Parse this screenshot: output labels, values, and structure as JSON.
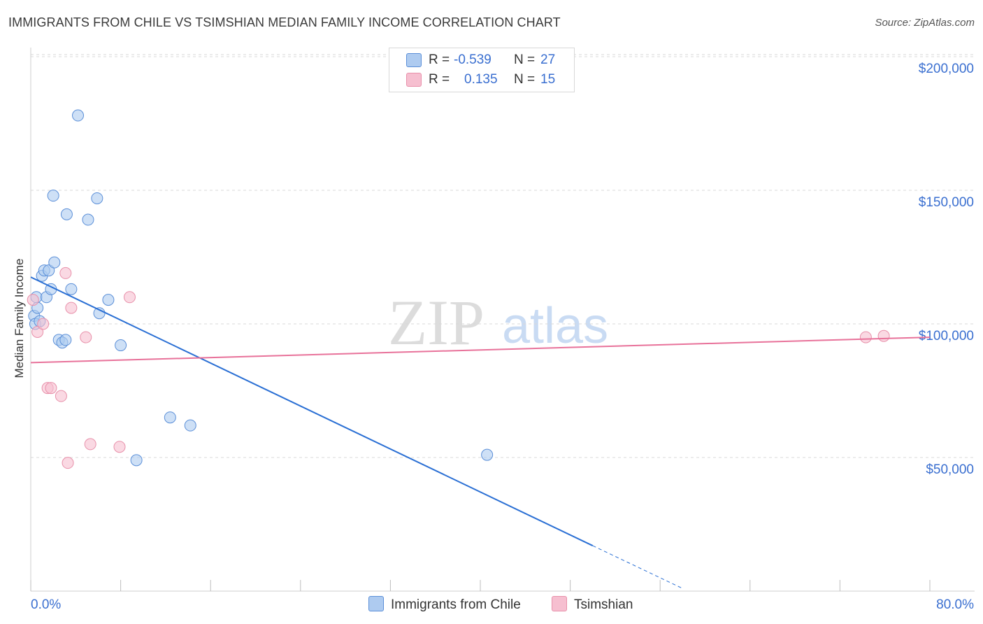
{
  "header": {
    "title": "IMMIGRANTS FROM CHILE VS TSIMSHIAN MEDIAN FAMILY INCOME CORRELATION CHART",
    "source": "Source: ZipAtlas.com"
  },
  "legend": {
    "r_label": "R =",
    "n_label": "N =",
    "rows": [
      {
        "r": "-0.539",
        "n": "27",
        "color": "#aecbf0"
      },
      {
        "r": "0.135",
        "n": "15",
        "color": "#f6bfd0"
      }
    ]
  },
  "watermark": {
    "zip": "ZIP",
    "atlas": "atlas"
  },
  "colors": {
    "blue_fill": "#aecbf0",
    "blue_stroke": "#5b8fd8",
    "blue_line": "#2a6fd4",
    "pink_fill": "#f6bfd0",
    "pink_stroke": "#e890aa",
    "pink_line": "#e8729a",
    "grid": "#d9d9d9",
    "axis_label": "#3a6fd0"
  },
  "chart_data": {
    "type": "scatter",
    "title": "IMMIGRANTS FROM CHILE VS TSIMSHIAN MEDIAN FAMILY INCOME CORRELATION CHART",
    "xlabel": "",
    "ylabel": "Median Family Income",
    "xlim": [
      0,
      80
    ],
    "ylim": [
      0,
      205000
    ],
    "x_tick_labels": [
      "0.0%",
      "80.0%"
    ],
    "y_ticks": [
      50000,
      100000,
      150000,
      200000
    ],
    "y_tick_labels": [
      "$50,000",
      "$100,000",
      "$150,000",
      "$200,000"
    ],
    "grid": true,
    "series": [
      {
        "name": "Immigrants from Chile",
        "points": [
          [
            0.3,
            103000
          ],
          [
            0.4,
            100000
          ],
          [
            0.5,
            110000
          ],
          [
            0.6,
            106000
          ],
          [
            0.8,
            101000
          ],
          [
            1.0,
            118000
          ],
          [
            1.2,
            120000
          ],
          [
            1.4,
            110000
          ],
          [
            1.6,
            120000
          ],
          [
            1.8,
            113000
          ],
          [
            2.0,
            148000
          ],
          [
            2.1,
            123000
          ],
          [
            2.5,
            94000
          ],
          [
            2.8,
            93000
          ],
          [
            3.1,
            94000
          ],
          [
            3.6,
            113000
          ],
          [
            3.2,
            141000
          ],
          [
            4.2,
            178000
          ],
          [
            5.1,
            139000
          ],
          [
            5.9,
            147000
          ],
          [
            6.1,
            104000
          ],
          [
            6.9,
            109000
          ],
          [
            8.0,
            92000
          ],
          [
            9.4,
            49000
          ],
          [
            12.4,
            65000
          ],
          [
            14.2,
            62000
          ],
          [
            40.6,
            51000
          ]
        ],
        "trend": {
          "x": [
            0,
            50
          ],
          "y": [
            117500,
            17000
          ],
          "dashed_to": [
            58,
            1000
          ]
        }
      },
      {
        "name": "Tsimshian",
        "points": [
          [
            0.2,
            109000
          ],
          [
            0.6,
            97000
          ],
          [
            1.1,
            100000
          ],
          [
            1.5,
            76000
          ],
          [
            1.8,
            76000
          ],
          [
            2.7,
            73000
          ],
          [
            3.1,
            119000
          ],
          [
            3.3,
            48000
          ],
          [
            3.6,
            106000
          ],
          [
            4.9,
            95000
          ],
          [
            5.3,
            55000
          ],
          [
            7.9,
            54000
          ],
          [
            8.8,
            110000
          ],
          [
            74.3,
            95000
          ],
          [
            75.9,
            95500
          ]
        ],
        "trend": {
          "x": [
            0,
            80
          ],
          "y": [
            85500,
            95000
          ]
        }
      }
    ]
  },
  "bottom_legend": [
    {
      "label": "Immigrants from Chile",
      "color": "#aecbf0"
    },
    {
      "label": "Tsimshian",
      "color": "#f6bfd0"
    }
  ]
}
